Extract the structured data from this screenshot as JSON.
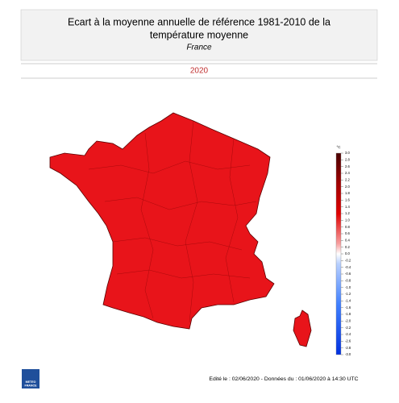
{
  "header": {
    "title_line1": "Ecart à la moyenne annuelle de référence 1981-2010 de la",
    "title_line2": "température moyenne",
    "subtitle": "France"
  },
  "period": "2020",
  "colorbar": {
    "unit": "°C",
    "ticks": [
      {
        "value": 3,
        "label": "3.0"
      },
      {
        "value": 2.8,
        "label": "2.8"
      },
      {
        "value": 2.6,
        "label": "2.6"
      },
      {
        "value": 2.4,
        "label": "2.4"
      },
      {
        "value": 2.2,
        "label": "2.2"
      },
      {
        "value": 2,
        "label": "2.0"
      },
      {
        "value": 1.8,
        "label": "1.8"
      },
      {
        "value": 1.6,
        "label": "1.6"
      },
      {
        "value": 1.4,
        "label": "1.4"
      },
      {
        "value": 1.2,
        "label": "1.2"
      },
      {
        "value": 1,
        "label": "1.0"
      },
      {
        "value": 0.8,
        "label": "0.8"
      },
      {
        "value": 0.6,
        "label": "0.6"
      },
      {
        "value": 0.4,
        "label": "0.4"
      },
      {
        "value": 0.2,
        "label": "0.2"
      },
      {
        "value": 0,
        "label": "0.0"
      },
      {
        "value": -0.2,
        "label": "-0.2"
      },
      {
        "value": -0.4,
        "label": "-0.4"
      },
      {
        "value": -0.6,
        "label": "-0.6"
      },
      {
        "value": -0.8,
        "label": "-0.8"
      },
      {
        "value": -1,
        "label": "-1.0"
      },
      {
        "value": -1.2,
        "label": "-1.2"
      },
      {
        "value": -1.4,
        "label": "-1.4"
      },
      {
        "value": -1.6,
        "label": "-1.6"
      },
      {
        "value": -1.8,
        "label": "-1.8"
      },
      {
        "value": -2,
        "label": "-2.0"
      },
      {
        "value": -2.2,
        "label": "-2.2"
      },
      {
        "value": -2.4,
        "label": "-2.4"
      },
      {
        "value": -2.6,
        "label": "-2.6"
      },
      {
        "value": -2.8,
        "label": "-2.8"
      },
      {
        "value": -3,
        "label": "-3.0"
      }
    ]
  },
  "logo": {
    "line1": "METEO",
    "line2": "FRANCE"
  },
  "footer": "Edité le : 02/06/2020 - Données du : 01/06/2020 à 14:30 UTC"
}
